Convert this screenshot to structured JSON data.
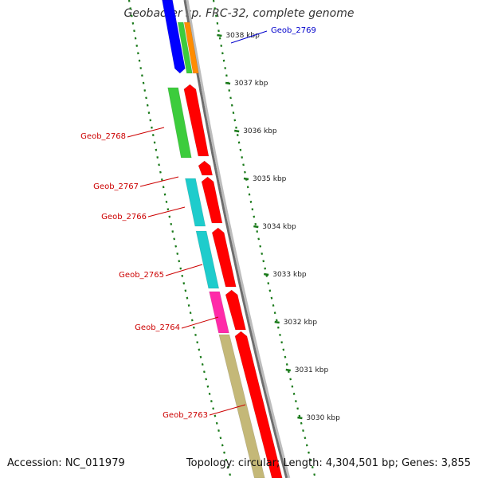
{
  "title": "Geobacter sp. FRC-32, complete genome",
  "footer": {
    "accession": "Accession: NC_011979",
    "summary": "Topology: circular; Length: 4,304,501 bp; Genes: 3,855"
  },
  "colors": {
    "backbone": "#808080",
    "tick": "#1a7a1a",
    "label_red": "#cc0000",
    "label_blue": "#0000cc",
    "red_cds": "#ff0000",
    "green": "#3ccc3c",
    "cyan": "#1ecccc",
    "magenta": "#ff2aa8",
    "khaki": "#c4b878",
    "blue": "#0000ff",
    "orange": "#ff8c00"
  },
  "scale_labels": [
    {
      "kbp": 3038,
      "text": "3038 kbp"
    },
    {
      "kbp": 3037,
      "text": "3037 kbp"
    },
    {
      "kbp": 3036,
      "text": "3036 kbp"
    },
    {
      "kbp": 3035,
      "text": "3035 kbp"
    },
    {
      "kbp": 3034,
      "text": "3034 kbp"
    },
    {
      "kbp": 3033,
      "text": "3033 kbp"
    },
    {
      "kbp": 3032,
      "text": "3032 kbp"
    },
    {
      "kbp": 3031,
      "text": "3031 kbp"
    },
    {
      "kbp": 3030,
      "text": "3030 kbp"
    }
  ],
  "genes": [
    {
      "name": "Geob_2769",
      "color": "blue"
    },
    {
      "name": "Geob_2768",
      "color": "red"
    },
    {
      "name": "Geob_2767",
      "color": "red"
    },
    {
      "name": "Geob_2766",
      "color": "red"
    },
    {
      "name": "Geob_2765",
      "color": "red"
    },
    {
      "name": "Geob_2764",
      "color": "red"
    },
    {
      "name": "Geob_2763",
      "color": "red"
    }
  ]
}
